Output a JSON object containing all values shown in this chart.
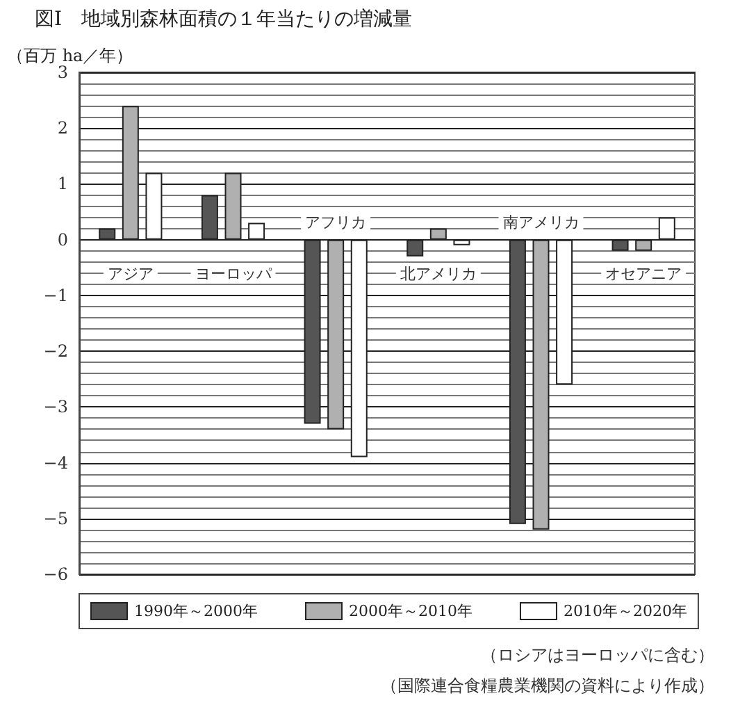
{
  "chart_data": {
    "type": "bar",
    "title": "図Ⅰ　地域別森林面積の１年当たりの増減量",
    "ylabel": "（百万 ha／年）",
    "categories": [
      "アジア",
      "ヨーロッパ",
      "アフリカ",
      "北アメリカ",
      "南アメリカ",
      "オセアニア"
    ],
    "series": [
      {
        "name": "1990年～2000年",
        "color": "#555555",
        "values": [
          0.2,
          0.8,
          -3.3,
          -0.3,
          -5.1,
          -0.2
        ]
      },
      {
        "name": "2000年～2010年",
        "color": "#b0b0b0",
        "values": [
          2.4,
          1.2,
          -3.4,
          0.2,
          -5.2,
          -0.2
        ]
      },
      {
        "name": "2010年～2020年",
        "color": "#ffffff",
        "values": [
          1.2,
          0.3,
          -3.9,
          -0.1,
          -2.6,
          0.4
        ]
      }
    ],
    "ylim": [
      -6,
      3
    ],
    "yticks": [
      -6,
      -5,
      -4,
      -3,
      -2,
      -1,
      0,
      1,
      2,
      3
    ],
    "grid": true,
    "legend": "bottom",
    "annotations": [
      "（ロシアはヨーロッパに含む）",
      "（国際連合食糧農業機関の資料により作成）"
    ]
  }
}
